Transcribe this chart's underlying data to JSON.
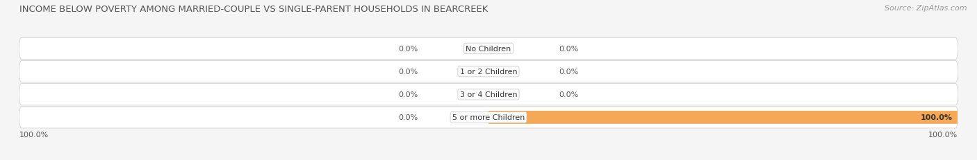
{
  "title": "INCOME BELOW POVERTY AMONG MARRIED-COUPLE VS SINGLE-PARENT HOUSEHOLDS IN BEARCREEK",
  "source": "Source: ZipAtlas.com",
  "categories": [
    "No Children",
    "1 or 2 Children",
    "3 or 4 Children",
    "5 or more Children"
  ],
  "married_values": [
    0.0,
    0.0,
    0.0,
    0.0
  ],
  "single_values": [
    0.0,
    0.0,
    0.0,
    100.0
  ],
  "married_color": "#aaaadd",
  "single_color": "#f5a855",
  "row_bg_light": "#f2f2f2",
  "row_bg_dark": "#e8e8e8",
  "fig_bg": "#f5f5f5",
  "title_fontsize": 9.5,
  "source_fontsize": 8,
  "label_fontsize": 8,
  "tick_fontsize": 8,
  "legend_fontsize": 8,
  "bar_height": 0.55,
  "x_left_label": "100.0%",
  "x_right_label": "100.0%"
}
